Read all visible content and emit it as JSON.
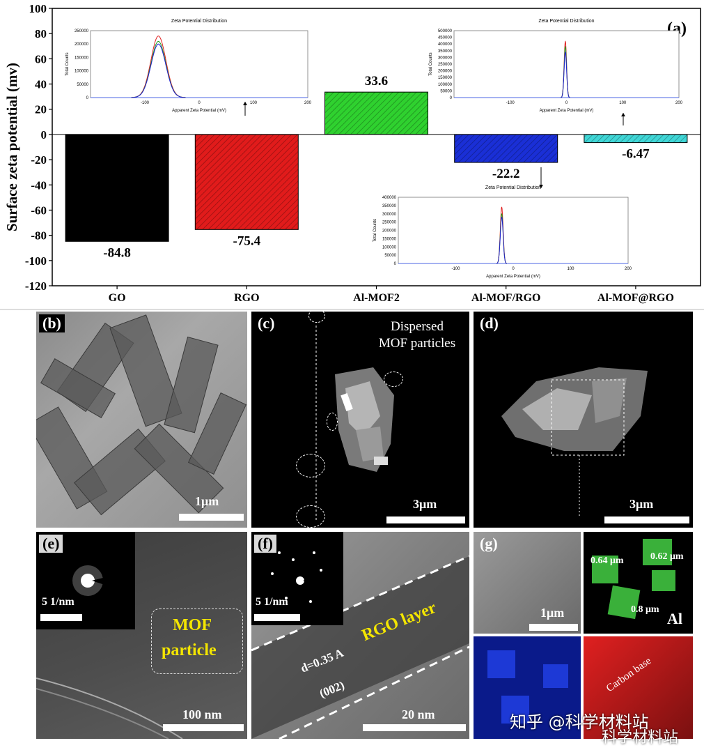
{
  "chart_data": {
    "type": "bar",
    "panel_label": "(a)",
    "ylabel": "Surface zeta potential (mv)",
    "xlabel": "",
    "ylim": [
      -120,
      100
    ],
    "yticks": [
      -120,
      -100,
      -80,
      -60,
      -40,
      -20,
      0,
      20,
      40,
      60,
      80,
      100
    ],
    "categories": [
      "GO",
      "RGO",
      "Al-MOF2",
      "Al-MOF/RGO",
      "Al-MOF@RGO"
    ],
    "values": [
      -84.8,
      -75.4,
      33.6,
      -22.2,
      -6.47
    ],
    "value_labels": [
      "-84.8",
      "-75.4",
      "33.6",
      "-22.2",
      "-6.47"
    ],
    "bar_colors": [
      "#000000",
      "#e11b1b",
      "#2fd12f",
      "#1a2fd6",
      "#3fd6d6"
    ],
    "insets": [
      {
        "title": "Zeta Potential Distribution",
        "xlabel": "Apparent Zeta Potential (mV)",
        "ylabel": "Total Counts",
        "xticks": [
          "-100",
          "0",
          "100",
          "200"
        ],
        "yticks": [
          "0",
          "50000",
          "100000",
          "150000",
          "200000",
          "250000"
        ],
        "xlim": [
          -200,
          200
        ],
        "ylim": [
          0,
          250000
        ],
        "peak_center": -75,
        "peak_width": 50,
        "peak_heights": [
          230000,
          210000,
          200000
        ],
        "series_colors": [
          "#e02020",
          "#20a020",
          "#2020d0"
        ]
      },
      {
        "title": "Zeta Potential Distribution",
        "xlabel": "Apparent Zeta Potential (mV)",
        "ylabel": "Total Counts",
        "xticks": [
          "-100",
          "0",
          "100",
          "200"
        ],
        "yticks": [
          "0",
          "50000",
          "100000",
          "150000",
          "200000",
          "250000",
          "300000",
          "350000",
          "400000",
          "450000",
          "500000"
        ],
        "xlim": [
          -200,
          200
        ],
        "ylim": [
          0,
          500000
        ],
        "peak_center": -2,
        "peak_width": 8,
        "peak_heights": [
          420000,
          380000,
          340000
        ],
        "series_colors": [
          "#e02020",
          "#20a020",
          "#2020d0"
        ]
      },
      {
        "title": "Zeta Potential Distribution",
        "xlabel": "Apparent Zeta Potential (mV)",
        "ylabel": "Total Counts",
        "xticks": [
          "-100",
          "0",
          "100",
          "200"
        ],
        "yticks": [
          "0",
          "50000",
          "100000",
          "150000",
          "200000",
          "250000",
          "300000",
          "350000",
          "400000"
        ],
        "xlim": [
          -200,
          200
        ],
        "ylim": [
          0,
          400000
        ],
        "peak_center": -20,
        "peak_width": 9,
        "peak_heights": [
          340000,
          300000,
          280000
        ],
        "series_colors": [
          "#e02020",
          "#20a020",
          "#2020d0"
        ]
      }
    ]
  },
  "panels": {
    "b": {
      "label": "(b)",
      "scale": "1μm"
    },
    "c": {
      "label": "(c)",
      "scale": "3μm",
      "note_line1": "Dispersed",
      "note_line2": "MOF particles"
    },
    "d": {
      "label": "(d)",
      "scale": "3μm"
    },
    "e": {
      "label": "(e)",
      "scale": "100 nm",
      "inset_scale": "5 1/nm",
      "note_line1": "MOF",
      "note_line2": "particle"
    },
    "f": {
      "label": "(f)",
      "scale": "20 nm",
      "inset_scale": "5 1/nm",
      "layer": "RGO layer",
      "dspacing": "d=0.35 A",
      "plane": "(002)"
    },
    "g": {
      "label": "(g)",
      "scale": "1μm",
      "w1": "0.64 μm",
      "w2": "0.62 μm",
      "w3": "0.8 μm",
      "element": "Al",
      "carbon": "Carbon base"
    }
  },
  "watermark": {
    "line1": "知乎 @科学材料站",
    "line2": "科学材料站"
  }
}
